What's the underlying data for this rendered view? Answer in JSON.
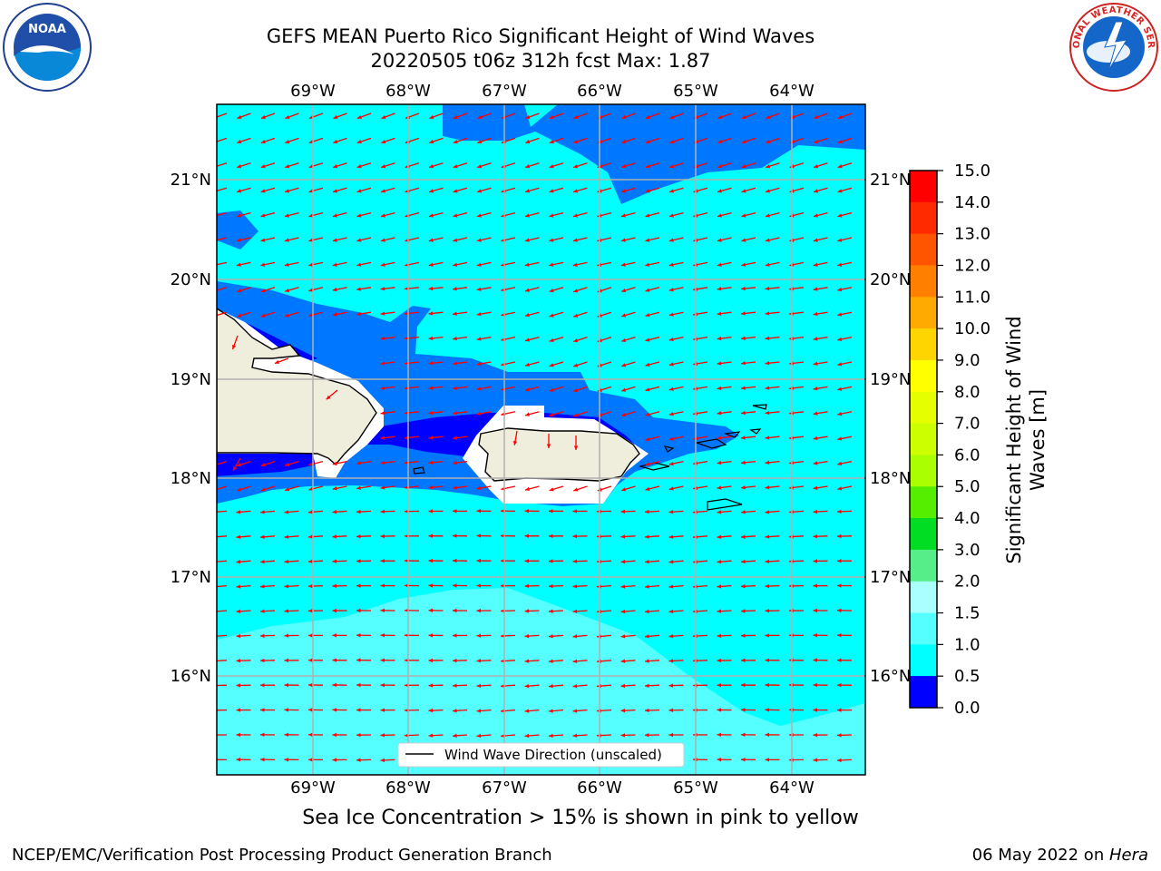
{
  "header": {
    "title_line1": "GEFS MEAN Puerto Rico Significant Height of Wind Waves",
    "title_line2": "20220505 t06z 312h fcst   Max: 1.87"
  },
  "logos": {
    "left": "noaa-logo",
    "left_text": "NOAA",
    "right": "nws-logo",
    "right_text": "NATIONAL WEATHER SERVICE"
  },
  "map": {
    "lon_labels": [
      "69°W",
      "68°W",
      "67°W",
      "66°W",
      "65°W",
      "64°W"
    ],
    "lat_labels": [
      "21°N",
      "20°N",
      "19°N",
      "18°N",
      "17°N",
      "16°N"
    ],
    "legend_label": "Wind Wave Direction (unscaled)",
    "colors": {
      "ocean_light": "#00ffff",
      "ocean_pale": "#55ffff",
      "ocean_mid": "#0077ff",
      "ocean_deep": "#0000ff",
      "land": "#efeddc",
      "arrow": "#ff0000",
      "grid": "#b0b0b0"
    }
  },
  "colorbar": {
    "label": "Significant Height of Wind Waves [m]",
    "label_line1": "Significant Height of Wind",
    "label_line2": "Waves [m]",
    "ticks": [
      "15.0",
      "14.0",
      "13.0",
      "12.0",
      "11.0",
      "10.0",
      "9.0",
      "8.0",
      "7.0",
      "6.0",
      "5.0",
      "4.0",
      "3.0",
      "2.0",
      "1.5",
      "1.0",
      "0.5",
      "0.0"
    ],
    "colors": [
      "#ff0000",
      "#ff2a00",
      "#ff5500",
      "#ff8000",
      "#ffaa00",
      "#ffd500",
      "#ffff00",
      "#e6ff00",
      "#ccff00",
      "#aaff00",
      "#55ee00",
      "#00dd22",
      "#55ee88",
      "#aaffff",
      "#55ffff",
      "#00ffff",
      "#0077ff",
      "#0000ff"
    ]
  },
  "subtitle": "Sea Ice Concentration > 15% is shown in pink to yellow",
  "footer": {
    "left": "NCEP/EMC/Verification Post Processing Product Generation Branch",
    "right_date": "06 May 2022 on ",
    "right_host": "Hera"
  }
}
